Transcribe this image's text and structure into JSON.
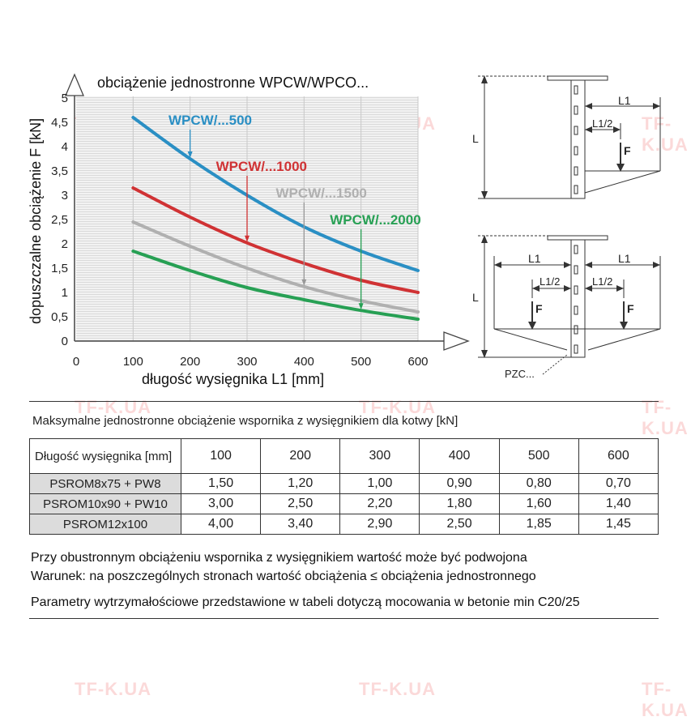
{
  "chart_data": {
    "type": "line",
    "title": "obciążenie jednostronne WPCW/WPCO...",
    "xlabel": "długość wysięgnika L1 [mm]",
    "ylabel": "dopuszczalne obciążenie F [kN]",
    "xlim": [
      0,
      600
    ],
    "ylim": [
      0,
      5
    ],
    "x_ticks": [
      "0",
      "100",
      "200",
      "300",
      "400",
      "500",
      "600"
    ],
    "y_ticks": [
      "0",
      "0,5",
      "1",
      "1,5",
      "2",
      "2,5",
      "3",
      "3,5",
      "4",
      "4,5",
      "5"
    ],
    "grid": "horizontal",
    "series": [
      {
        "name": "WPCW/...500",
        "color": "#2a8fc4",
        "x": [
          100,
          200,
          300,
          400,
          500,
          600
        ],
        "y": [
          4.6,
          3.75,
          3.0,
          2.35,
          1.85,
          1.45
        ]
      },
      {
        "name": "WPCW/...1000",
        "color": "#d03234",
        "x": [
          100,
          200,
          300,
          400,
          500,
          600
        ],
        "y": [
          3.15,
          2.55,
          2.02,
          1.6,
          1.25,
          1.0
        ]
      },
      {
        "name": "WPCW/...1500",
        "color": "#b0b0b0",
        "x": [
          100,
          200,
          300,
          400,
          500,
          600
        ],
        "y": [
          2.45,
          1.95,
          1.5,
          1.12,
          0.83,
          0.6
        ]
      },
      {
        "name": "WPCW/...2000",
        "color": "#27a054",
        "x": [
          100,
          200,
          300,
          400,
          500,
          600
        ],
        "y": [
          1.85,
          1.45,
          1.1,
          0.85,
          0.63,
          0.45
        ]
      }
    ]
  },
  "diagram": {
    "top": {
      "L": "L",
      "L1": "L1",
      "L1_half": "L1/2",
      "F": "F"
    },
    "bottom": {
      "L": "L",
      "L1_left": "L1",
      "L1_right": "L1",
      "L1_half_left": "L1/2",
      "L1_half_right": "L1/2",
      "F_left": "F",
      "F_right": "F",
      "pzc": "PZC..."
    }
  },
  "watermark": "TF-K.UA",
  "table": {
    "caption": "Maksymalne jednostronne obciążenie wspornika z wysięgnikiem dla kotwy [kN]",
    "header_label": "Długość wysięgnika [mm]",
    "columns": [
      "100",
      "200",
      "300",
      "400",
      "500",
      "600"
    ],
    "rows": [
      {
        "label": "PSROM8x75 + PW8",
        "values": [
          "1,50",
          "1,20",
          "1,00",
          "0,90",
          "0,80",
          "0,70"
        ]
      },
      {
        "label": "PSROM10x90 + PW10",
        "values": [
          "3,00",
          "2,50",
          "2,20",
          "1,80",
          "1,60",
          "1,40"
        ]
      },
      {
        "label": "PSROM12x100",
        "values": [
          "4,00",
          "3,40",
          "2,90",
          "2,50",
          "1,85",
          "1,45"
        ]
      }
    ]
  },
  "notes": {
    "line1": "Przy obustronnym obciążeniu wspornika z wysięgnikiem wartość może być podwojona",
    "line2": "Warunek: na poszczególnych stronach wartość obciążenia ≤ obciążenia jednostronnego",
    "line3": "Parametry wytrzymałościowe przedstawione w tabeli dotyczą mocowania w betonie min C20/25"
  }
}
